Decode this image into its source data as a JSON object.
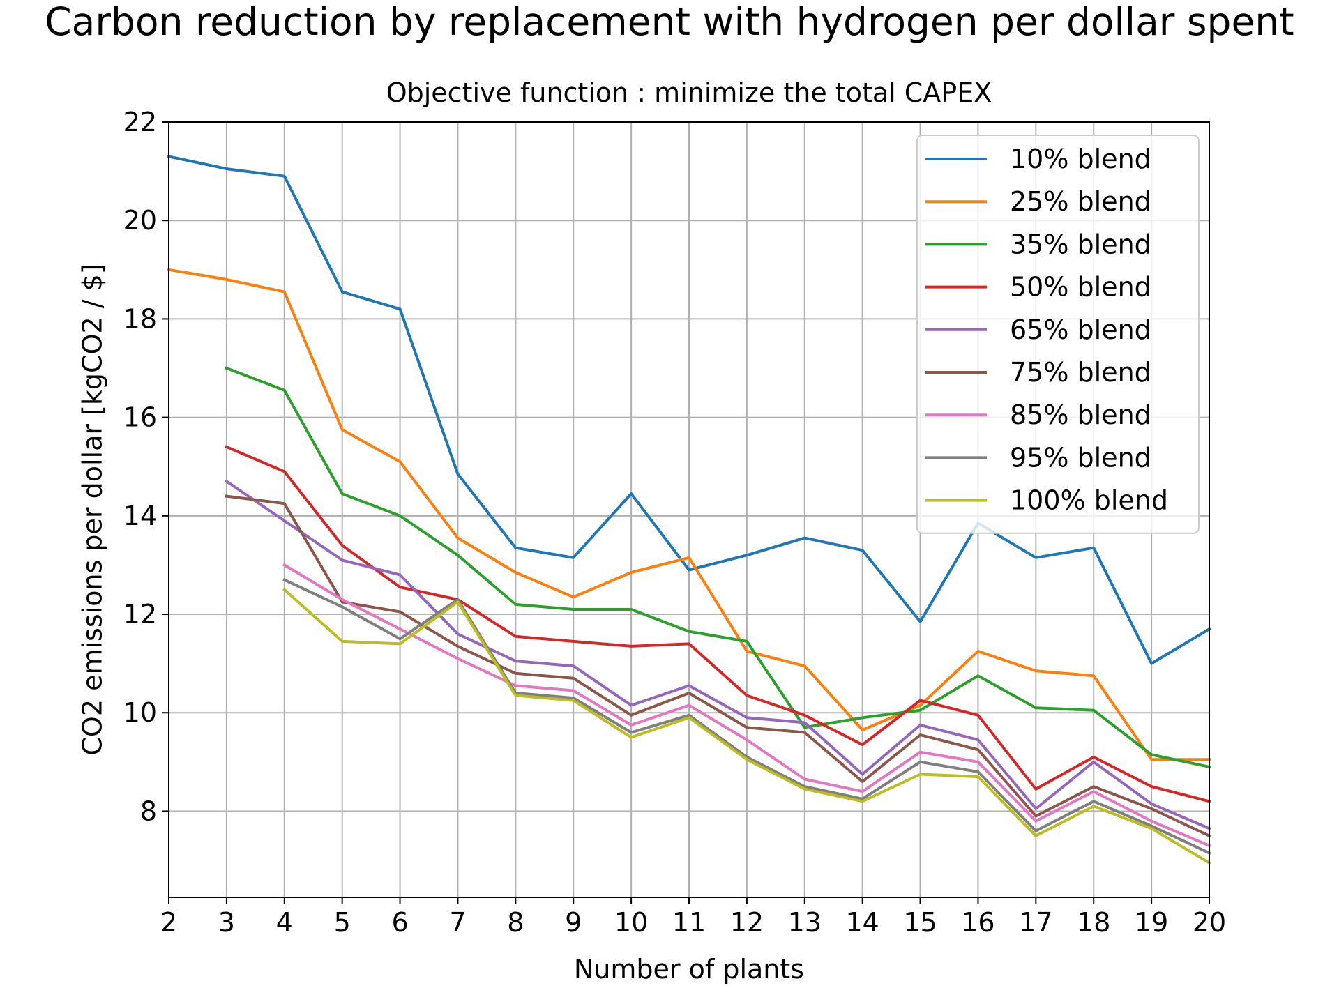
{
  "figure": {
    "suptitle": "Carbon reduction by replacement with hydrogen per dollar spent"
  },
  "chart_data": {
    "type": "line",
    "title": "Objective function : minimize the total CAPEX",
    "xlabel": "Number of plants",
    "ylabel": "CO2 emissions per dollar [kgCO2 / $]",
    "xlim": [
      2,
      20
    ],
    "ylim": [
      6.25,
      22
    ],
    "xticks": [
      2,
      3,
      4,
      5,
      6,
      7,
      8,
      9,
      10,
      11,
      12,
      13,
      14,
      15,
      16,
      17,
      18,
      19,
      20
    ],
    "yticks": [
      8,
      10,
      12,
      14,
      16,
      18,
      20,
      22
    ],
    "grid": true,
    "legend_position": "top-right",
    "series": [
      {
        "name": "10% blend",
        "color": "#1f77b4",
        "x": [
          2,
          3,
          4,
          5,
          6,
          7,
          8,
          9,
          10,
          11,
          12,
          13,
          14,
          15,
          16,
          17,
          18,
          19,
          20
        ],
        "y": [
          21.3,
          21.05,
          20.9,
          18.55,
          18.2,
          14.85,
          13.35,
          13.15,
          14.45,
          12.9,
          13.2,
          13.55,
          13.3,
          11.85,
          13.85,
          13.15,
          13.35,
          11.0,
          11.7
        ]
      },
      {
        "name": "25% blend",
        "color": "#ff7f0e",
        "x": [
          2,
          3,
          4,
          5,
          6,
          7,
          8,
          9,
          10,
          11,
          12,
          13,
          14,
          15,
          16,
          17,
          18,
          19,
          20
        ],
        "y": [
          19.0,
          18.8,
          18.55,
          15.75,
          15.1,
          13.55,
          12.85,
          12.35,
          12.85,
          13.15,
          11.25,
          10.95,
          9.65,
          10.15,
          11.25,
          10.85,
          10.75,
          9.05,
          9.05
        ]
      },
      {
        "name": "35% blend",
        "color": "#2ca02c",
        "x": [
          3,
          4,
          5,
          6,
          7,
          8,
          9,
          10,
          11,
          12,
          13,
          14,
          15,
          16,
          17,
          18,
          19,
          20
        ],
        "y": [
          17.0,
          16.55,
          14.45,
          14.0,
          13.2,
          12.2,
          12.1,
          12.1,
          11.65,
          11.45,
          9.7,
          9.9,
          10.05,
          10.75,
          10.1,
          10.05,
          9.15,
          8.9
        ]
      },
      {
        "name": "50% blend",
        "color": "#d62728",
        "x": [
          3,
          4,
          5,
          6,
          7,
          8,
          9,
          10,
          11,
          12,
          13,
          14,
          15,
          16,
          17,
          18,
          19,
          20
        ],
        "y": [
          15.4,
          14.9,
          13.4,
          12.55,
          12.3,
          11.55,
          11.45,
          11.35,
          11.4,
          10.35,
          9.95,
          9.35,
          10.25,
          9.95,
          8.45,
          9.1,
          8.5,
          8.2
        ]
      },
      {
        "name": "65% blend",
        "color": "#9467bd",
        "x": [
          3,
          4,
          5,
          6,
          7,
          8,
          9,
          10,
          11,
          12,
          13,
          14,
          15,
          16,
          17,
          18,
          19,
          20
        ],
        "y": [
          14.7,
          13.9,
          13.1,
          12.8,
          11.6,
          11.05,
          10.95,
          10.15,
          10.55,
          9.9,
          9.8,
          8.75,
          9.75,
          9.45,
          8.05,
          9.0,
          8.15,
          7.65
        ]
      },
      {
        "name": "75% blend",
        "color": "#8c564b",
        "x": [
          3,
          4,
          5,
          6,
          7,
          8,
          9,
          10,
          11,
          12,
          13,
          14,
          15,
          16,
          17,
          18,
          19,
          20
        ],
        "y": [
          14.4,
          14.25,
          12.25,
          12.05,
          11.35,
          10.8,
          10.7,
          9.95,
          10.4,
          9.7,
          9.6,
          8.6,
          9.55,
          9.25,
          7.9,
          8.5,
          8.05,
          7.5
        ]
      },
      {
        "name": "85% blend",
        "color": "#e377c2",
        "x": [
          4,
          5,
          6,
          7,
          8,
          9,
          10,
          11,
          12,
          13,
          14,
          15,
          16,
          17,
          18,
          19,
          20
        ],
        "y": [
          13.0,
          12.3,
          11.7,
          11.1,
          10.55,
          10.45,
          9.75,
          10.15,
          9.45,
          8.65,
          8.4,
          9.2,
          9.0,
          7.8,
          8.4,
          7.8,
          7.3
        ]
      },
      {
        "name": "95% blend",
        "color": "#7f7f7f",
        "x": [
          4,
          5,
          6,
          7,
          8,
          9,
          10,
          11,
          12,
          13,
          14,
          15,
          16,
          17,
          18,
          19,
          20
        ],
        "y": [
          12.7,
          12.15,
          11.5,
          12.3,
          10.4,
          10.3,
          9.6,
          9.95,
          9.1,
          8.5,
          8.25,
          9.0,
          8.8,
          7.6,
          8.2,
          7.7,
          7.15
        ]
      },
      {
        "name": "100% blend",
        "color": "#bcbd22",
        "x": [
          4,
          5,
          6,
          7,
          8,
          9,
          10,
          11,
          12,
          13,
          14,
          15,
          16,
          17,
          18,
          19,
          20
        ],
        "y": [
          12.5,
          11.45,
          11.4,
          12.25,
          10.35,
          10.25,
          9.5,
          9.9,
          9.05,
          8.45,
          8.2,
          8.75,
          8.7,
          7.5,
          8.1,
          7.65,
          6.95
        ]
      }
    ]
  }
}
